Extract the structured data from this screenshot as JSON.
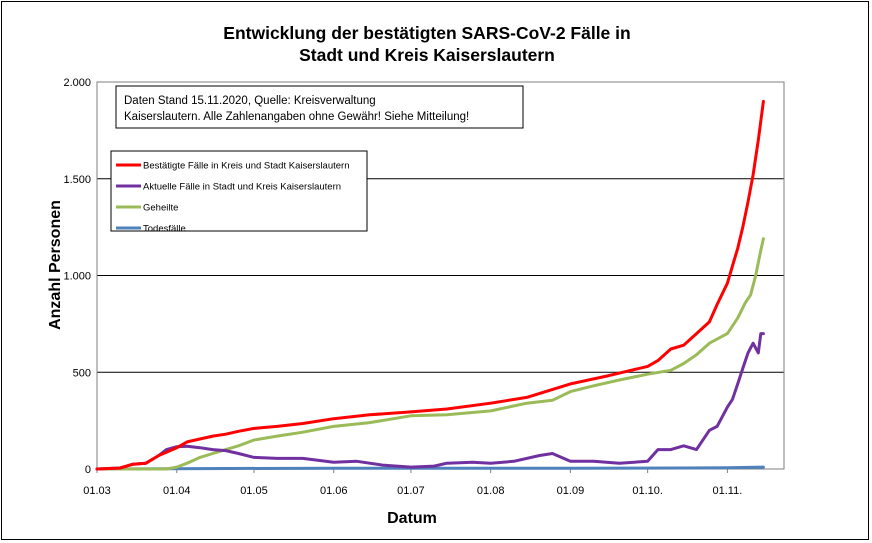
{
  "chart_data": {
    "type": "line",
    "title_line1": "Entwicklung der bestätigten SARS-CoV-2 Fälle in",
    "title_line2": "Stadt und Kreis Kaiserslautern",
    "xlabel": "Datum",
    "ylabel": "Anzahl Personen",
    "note_line1": "Daten Stand 15.11.2020, Quelle: Kreisverwaltung",
    "note_line2": "Kaiserslautern. Alle Zahlenangaben ohne Gewähr! Siehe Mitteilung!",
    "ylim": [
      0,
      2000
    ],
    "yticks": [
      0,
      500,
      1000,
      1500,
      2000
    ],
    "ytick_labels": [
      "0",
      "500",
      "1.000",
      "1.500",
      "2.000"
    ],
    "xlim": [
      "2020-03-01",
      "2020-11-23"
    ],
    "xticks": [
      "2020-03-01",
      "2020-04-01",
      "2020-05-01",
      "2020-06-01",
      "2020-07-01",
      "2020-08-01",
      "2020-09-01",
      "2020-10-01",
      "2020-11-01"
    ],
    "xtick_labels": [
      "01.03",
      "01.04",
      "01.05",
      "01.06",
      "01.07",
      "01.08",
      "01.09",
      "01.10.",
      "01.11."
    ],
    "grid": "horizontal",
    "legend_placement": "upper-left",
    "series": [
      {
        "name": "Bestätigte Fälle in Kreis und Stadt Kaiserslautern",
        "color": "#ff0000",
        "points": [
          [
            "2020-03-01",
            0
          ],
          [
            "2020-03-10",
            5
          ],
          [
            "2020-03-15",
            25
          ],
          [
            "2020-03-20",
            30
          ],
          [
            "2020-03-25",
            70
          ],
          [
            "2020-04-01",
            110
          ],
          [
            "2020-04-05",
            140
          ],
          [
            "2020-04-10",
            155
          ],
          [
            "2020-04-15",
            170
          ],
          [
            "2020-04-20",
            180
          ],
          [
            "2020-04-25",
            195
          ],
          [
            "2020-05-01",
            210
          ],
          [
            "2020-05-10",
            220
          ],
          [
            "2020-05-20",
            235
          ],
          [
            "2020-06-01",
            260
          ],
          [
            "2020-06-15",
            280
          ],
          [
            "2020-07-01",
            295
          ],
          [
            "2020-07-15",
            310
          ],
          [
            "2020-08-01",
            340
          ],
          [
            "2020-08-15",
            370
          ],
          [
            "2020-09-01",
            440
          ],
          [
            "2020-09-15",
            480
          ],
          [
            "2020-10-01",
            530
          ],
          [
            "2020-10-05",
            560
          ],
          [
            "2020-10-10",
            620
          ],
          [
            "2020-10-15",
            640
          ],
          [
            "2020-10-20",
            700
          ],
          [
            "2020-10-25",
            760
          ],
          [
            "2020-10-28",
            850
          ],
          [
            "2020-11-01",
            960
          ],
          [
            "2020-11-03",
            1050
          ],
          [
            "2020-11-05",
            1140
          ],
          [
            "2020-11-07",
            1250
          ],
          [
            "2020-11-09",
            1380
          ],
          [
            "2020-11-11",
            1520
          ],
          [
            "2020-11-13",
            1700
          ],
          [
            "2020-11-15",
            1900
          ]
        ]
      },
      {
        "name": "Aktuelle Fälle in Stadt und Kreis Kaiserslautern",
        "color": "#7030a0",
        "points": [
          [
            "2020-03-01",
            0
          ],
          [
            "2020-03-10",
            5
          ],
          [
            "2020-03-15",
            25
          ],
          [
            "2020-03-20",
            30
          ],
          [
            "2020-03-25",
            70
          ],
          [
            "2020-03-28",
            100
          ],
          [
            "2020-04-01",
            115
          ],
          [
            "2020-04-05",
            118
          ],
          [
            "2020-04-10",
            110
          ],
          [
            "2020-04-15",
            100
          ],
          [
            "2020-04-20",
            95
          ],
          [
            "2020-04-25",
            80
          ],
          [
            "2020-05-01",
            60
          ],
          [
            "2020-05-10",
            55
          ],
          [
            "2020-05-20",
            55
          ],
          [
            "2020-06-01",
            35
          ],
          [
            "2020-06-10",
            40
          ],
          [
            "2020-06-20",
            20
          ],
          [
            "2020-07-01",
            10
          ],
          [
            "2020-07-10",
            15
          ],
          [
            "2020-07-15",
            30
          ],
          [
            "2020-07-25",
            35
          ],
          [
            "2020-08-01",
            30
          ],
          [
            "2020-08-10",
            40
          ],
          [
            "2020-08-20",
            70
          ],
          [
            "2020-08-25",
            80
          ],
          [
            "2020-09-01",
            40
          ],
          [
            "2020-09-10",
            40
          ],
          [
            "2020-09-20",
            30
          ],
          [
            "2020-10-01",
            40
          ],
          [
            "2020-10-05",
            100
          ],
          [
            "2020-10-10",
            100
          ],
          [
            "2020-10-15",
            120
          ],
          [
            "2020-10-20",
            100
          ],
          [
            "2020-10-25",
            200
          ],
          [
            "2020-10-28",
            220
          ],
          [
            "2020-11-01",
            320
          ],
          [
            "2020-11-03",
            360
          ],
          [
            "2020-11-05",
            440
          ],
          [
            "2020-11-07",
            520
          ],
          [
            "2020-11-09",
            600
          ],
          [
            "2020-11-11",
            650
          ],
          [
            "2020-11-13",
            600
          ],
          [
            "2020-11-14",
            700
          ],
          [
            "2020-11-15",
            700
          ]
        ]
      },
      {
        "name": "Geheilte",
        "color": "#9bbb59",
        "points": [
          [
            "2020-03-01",
            0
          ],
          [
            "2020-03-20",
            0
          ],
          [
            "2020-03-28",
            0
          ],
          [
            "2020-04-01",
            10
          ],
          [
            "2020-04-05",
            30
          ],
          [
            "2020-04-10",
            60
          ],
          [
            "2020-04-15",
            80
          ],
          [
            "2020-04-20",
            100
          ],
          [
            "2020-04-25",
            120
          ],
          [
            "2020-05-01",
            150
          ],
          [
            "2020-05-10",
            170
          ],
          [
            "2020-05-20",
            190
          ],
          [
            "2020-06-01",
            220
          ],
          [
            "2020-06-15",
            240
          ],
          [
            "2020-07-01",
            275
          ],
          [
            "2020-07-15",
            280
          ],
          [
            "2020-08-01",
            300
          ],
          [
            "2020-08-15",
            340
          ],
          [
            "2020-08-25",
            355
          ],
          [
            "2020-09-01",
            400
          ],
          [
            "2020-09-10",
            430
          ],
          [
            "2020-09-20",
            460
          ],
          [
            "2020-10-01",
            490
          ],
          [
            "2020-10-10",
            510
          ],
          [
            "2020-10-15",
            545
          ],
          [
            "2020-10-20",
            590
          ],
          [
            "2020-10-25",
            650
          ],
          [
            "2020-11-01",
            700
          ],
          [
            "2020-11-05",
            780
          ],
          [
            "2020-11-08",
            860
          ],
          [
            "2020-11-10",
            900
          ],
          [
            "2020-11-12",
            1000
          ],
          [
            "2020-11-14",
            1130
          ],
          [
            "2020-11-15",
            1190
          ]
        ]
      },
      {
        "name": "Todesfälle",
        "color": "#4f81bd",
        "points": [
          [
            "2020-03-01",
            0
          ],
          [
            "2020-04-10",
            2
          ],
          [
            "2020-06-01",
            4
          ],
          [
            "2020-09-01",
            4
          ],
          [
            "2020-10-15",
            5
          ],
          [
            "2020-11-01",
            6
          ],
          [
            "2020-11-15",
            10
          ]
        ]
      }
    ]
  }
}
